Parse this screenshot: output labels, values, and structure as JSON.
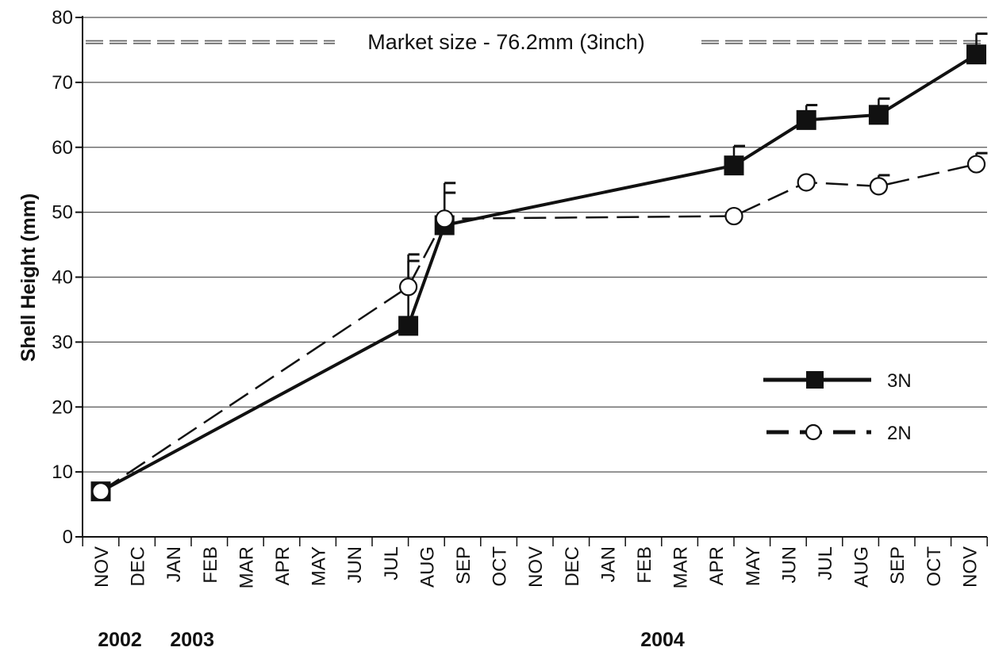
{
  "chart_data": {
    "type": "line",
    "title": "",
    "xlabel": "",
    "ylabel": "Shell Height (mm)",
    "ylim": [
      0,
      80
    ],
    "yticks": [
      0,
      10,
      20,
      30,
      40,
      50,
      60,
      70,
      80
    ],
    "grid": true,
    "legend_position": "bottom-right",
    "categories": [
      "NOV",
      "DEC",
      "JAN",
      "FEB",
      "MAR",
      "APR",
      "MAY",
      "JUN",
      "JUL",
      "AUG",
      "SEP",
      "OCT",
      "NOV",
      "DEC",
      "JAN",
      "FEB",
      "MAR",
      "APR",
      "MAY",
      "JUN",
      "JUL",
      "AUG",
      "SEP",
      "OCT",
      "NOV"
    ],
    "year_labels": [
      {
        "label": "2002",
        "at_index": 0
      },
      {
        "label": "2003",
        "at_index": 2
      },
      {
        "label": "2004",
        "at_index": 15
      }
    ],
    "reference_line": {
      "label": "Market size - 76.2mm (3inch)",
      "y": 76.2
    },
    "series": [
      {
        "name": "3N",
        "style": "solid",
        "marker": "filled-square",
        "color": "#111111",
        "points": [
          {
            "x": 0,
            "y": 7,
            "err": 0
          },
          {
            "x": 8.5,
            "y": 32.5,
            "err": 11
          },
          {
            "x": 9.5,
            "y": 48,
            "err": 6.5
          },
          {
            "x": 17.5,
            "y": 57.2,
            "err": 3
          },
          {
            "x": 19.5,
            "y": 64.2,
            "err": 2.3
          },
          {
            "x": 21.5,
            "y": 65,
            "err": 2.5
          },
          {
            "x": 24.2,
            "y": 74.3,
            "err": 3.2
          }
        ]
      },
      {
        "name": "2N",
        "style": "dashed",
        "marker": "open-circle",
        "color": "#111111",
        "points": [
          {
            "x": 0,
            "y": 7,
            "err": 0
          },
          {
            "x": 8.5,
            "y": 38.5,
            "err": 4
          },
          {
            "x": 9.5,
            "y": 49,
            "err": 4
          },
          {
            "x": 17.5,
            "y": 49.4,
            "err": 0
          },
          {
            "x": 19.5,
            "y": 54.6,
            "err": 0
          },
          {
            "x": 21.5,
            "y": 54,
            "err": 1.7
          },
          {
            "x": 24.2,
            "y": 57.4,
            "err": 1.7
          }
        ]
      }
    ]
  }
}
